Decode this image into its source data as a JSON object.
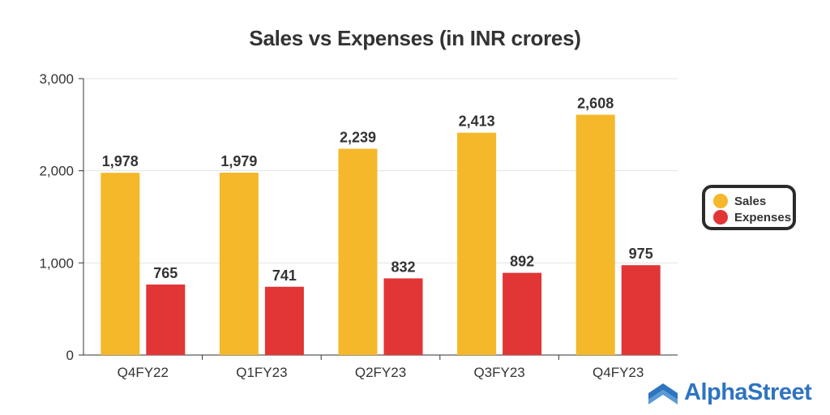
{
  "colors": {
    "sales": "#f4b82a",
    "expenses": "#e23535",
    "axis": "#333333",
    "grid": "#e3e3e3",
    "logo": "#2e74c0"
  },
  "chart_data": {
    "type": "bar",
    "title": "Sales vs Expenses (in INR crores)",
    "xlabel": "",
    "ylabel": "",
    "categories": [
      "Q4FY22",
      "Q1FY23",
      "Q2FY23",
      "Q3FY23",
      "Q4FY23"
    ],
    "series": [
      {
        "name": "Sales",
        "values": [
          1978,
          1979,
          2239,
          2413,
          2608
        ],
        "labels": [
          "1,978",
          "1,979",
          "2,239",
          "2,413",
          "2,608"
        ]
      },
      {
        "name": "Expenses",
        "values": [
          765,
          741,
          832,
          892,
          975
        ],
        "labels": [
          "765",
          "741",
          "832",
          "892",
          "975"
        ]
      }
    ],
    "ylim": [
      0,
      3000
    ],
    "yticks": [
      0,
      1000,
      2000,
      3000
    ],
    "ytick_labels": [
      "0",
      "1,000",
      "2,000",
      "3,000"
    ],
    "grid": true,
    "legend_position": "right"
  },
  "logo": {
    "text": "AlphaStreet",
    "icon": "alphastreet-logo-icon"
  }
}
